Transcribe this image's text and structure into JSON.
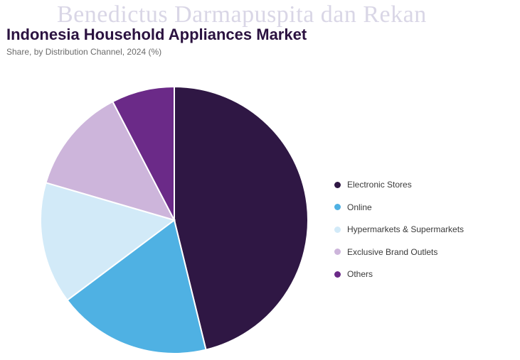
{
  "watermark": "Benedictus Darmapuspita dan Rekan",
  "chart_data": {
    "type": "pie",
    "title": "Indonesia Household Appliances Market",
    "subtitle": "Share, by Distribution Channel, 2024 (%)",
    "legend_position": "right",
    "categories": [
      "Electronic Stores",
      "Online",
      "Hypermarkets & Supermarkets",
      "Exclusive Brand Outlets",
      "Others"
    ],
    "values": [
      48.5,
      19.5,
      15.5,
      13.5,
      8.0
    ],
    "colors": [
      "#2f1744",
      "#4fb1e3",
      "#d2eaf8",
      "#cdb5db",
      "#6b2a88"
    ]
  }
}
